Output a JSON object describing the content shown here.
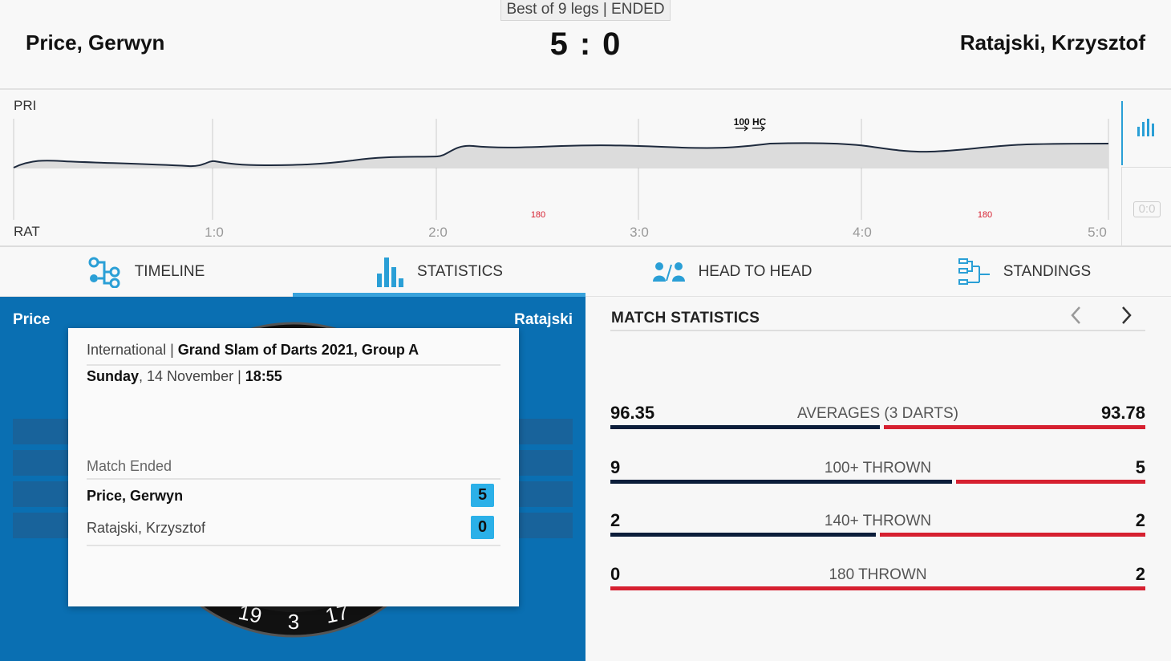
{
  "match": {
    "format": "Best of 9 legs | ENDED",
    "home_player": "Price, Gerwyn",
    "away_player": "Ratajski, Krzysztof",
    "home_score": "5",
    "away_score": "0",
    "score_separator": ":"
  },
  "momentum": {
    "home_abbr": "PRI",
    "away_abbr": "RAT",
    "leg_labels": [
      "1:0",
      "2:0",
      "3:0",
      "4:0",
      "5:0"
    ],
    "events_home": [
      "100 HC"
    ],
    "events_away": [
      "180",
      "180"
    ],
    "reset_label": "0:0",
    "colors": {
      "line": "#1e2a3d",
      "fill": "#dcdcdc",
      "event_red": "#d62030",
      "accent": "#2a9fd6"
    }
  },
  "tabs": [
    {
      "label": "TIMELINE",
      "icon": "timeline-icon"
    },
    {
      "label": "STATISTICS",
      "icon": "bar-chart-icon",
      "active": true
    },
    {
      "label": "HEAD TO HEAD",
      "icon": "head-to-head-icon"
    },
    {
      "label": "STANDINGS",
      "icon": "bracket-icon"
    }
  ],
  "board": {
    "home_short": "Price",
    "away_short": "Ratajski",
    "visible_numbers": [
      "19",
      "3",
      "17"
    ],
    "bg_color": "#0a6fb2"
  },
  "info_card": {
    "category": "International",
    "category_separator": " | ",
    "tournament": "Grand Slam of Darts 2021, Group A",
    "day": "Sunday",
    "date": ", 14 November | ",
    "time": "18:55",
    "status": "Match Ended",
    "home_name": "Price, Gerwyn",
    "home_score": "5",
    "away_name": "Ratajski, Krzysztof",
    "away_score": "0"
  },
  "stats": {
    "title": "MATCH STATISTICS",
    "rows": [
      {
        "label": "AVERAGES (3 DARTS)",
        "home": "96.35",
        "away": "93.78",
        "home_share": 0.507
      },
      {
        "label": "100+ THROWN",
        "home": "9",
        "away": "5",
        "home_share": 0.643
      },
      {
        "label": "140+ THROWN",
        "home": "2",
        "away": "2",
        "home_share": 0.5
      },
      {
        "label": "180 THROWN",
        "home": "0",
        "away": "2",
        "home_share": 0.0
      }
    ],
    "colors": {
      "home": "#0b1d3a",
      "away": "#d62030"
    }
  }
}
